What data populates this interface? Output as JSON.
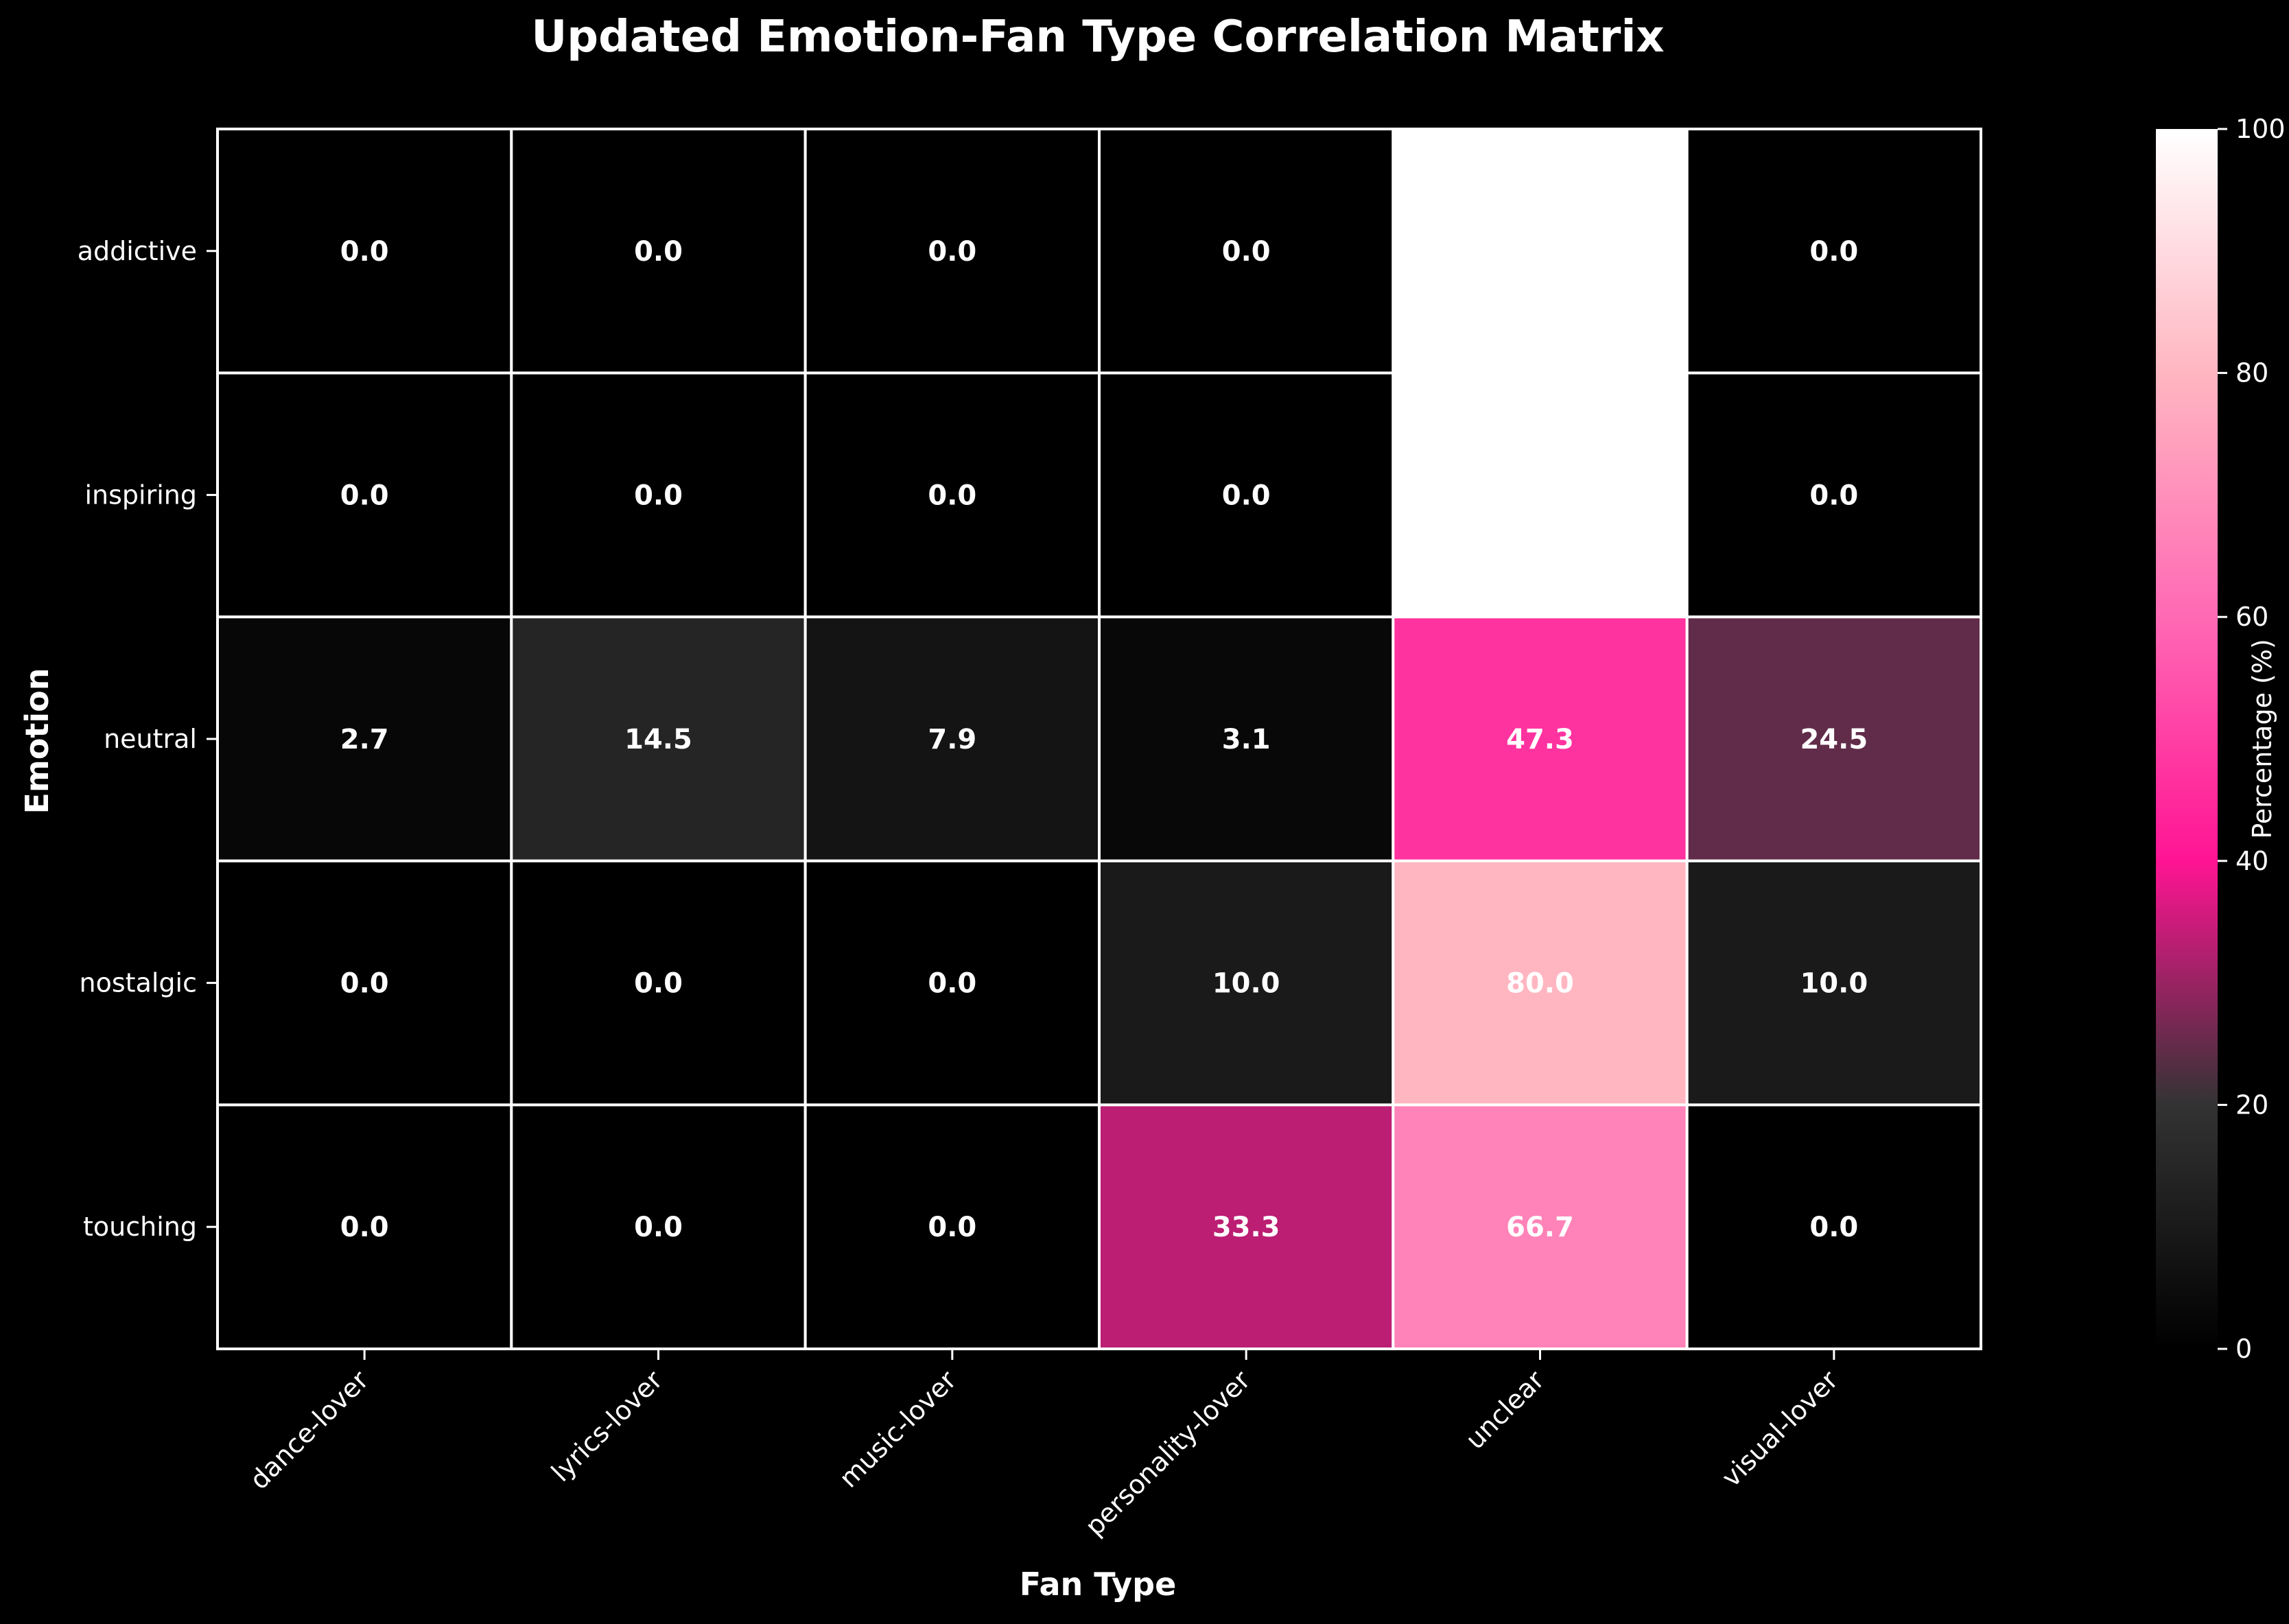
{
  "chart_data": {
    "type": "heatmap",
    "title": "Updated Emotion-Fan Type Correlation Matrix",
    "xlabel": "Fan Type",
    "ylabel": "Emotion",
    "x_categories": [
      "dance-lover",
      "lyrics-lover",
      "music-lover",
      "personality-lover",
      "unclear",
      "visual-lover"
    ],
    "y_categories": [
      "addictive",
      "inspiring",
      "neutral",
      "nostalgic",
      "touching"
    ],
    "values": [
      [
        0.0,
        0.0,
        0.0,
        0.0,
        100.0,
        0.0
      ],
      [
        0.0,
        0.0,
        0.0,
        0.0,
        100.0,
        0.0
      ],
      [
        2.7,
        14.5,
        7.9,
        3.1,
        47.3,
        24.5
      ],
      [
        0.0,
        0.0,
        0.0,
        10.0,
        80.0,
        10.0
      ],
      [
        0.0,
        0.0,
        0.0,
        33.3,
        66.7,
        0.0
      ]
    ],
    "value_labels": [
      [
        "0.0",
        "0.0",
        "0.0",
        "0.0",
        "",
        "0.0"
      ],
      [
        "0.0",
        "0.0",
        "0.0",
        "0.0",
        "",
        "0.0"
      ],
      [
        "2.7",
        "14.5",
        "7.9",
        "3.1",
        "47.3",
        "24.5"
      ],
      [
        "0.0",
        "0.0",
        "0.0",
        "10.0",
        "80.0",
        "10.0"
      ],
      [
        "0.0",
        "0.0",
        "0.0",
        "33.3",
        "66.7",
        "0.0"
      ]
    ],
    "colorbar": {
      "label": "Percentage (%)",
      "range": [
        0,
        100
      ],
      "ticks": [
        0,
        20,
        40,
        60,
        80,
        100
      ],
      "colors": [
        "#000000",
        "#333333",
        "#ff1493",
        "#ff69b4",
        "#ffb6c1",
        "#ffffff"
      ]
    },
    "grid": false
  }
}
